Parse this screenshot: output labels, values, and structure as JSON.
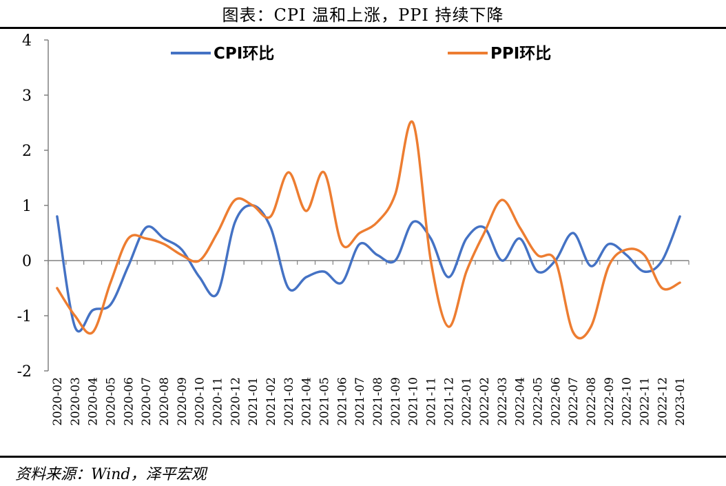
{
  "header": {
    "title": "图表：CPI 温和上涨，PPI 持续下降"
  },
  "footer": {
    "source": "资料来源：Wind，泽平宏观"
  },
  "chart_data": {
    "type": "line",
    "title": "图表：CPI 温和上涨，PPI 持续下降",
    "xlabel": "",
    "ylabel": "",
    "ylim": [
      -2,
      4
    ],
    "yticks": [
      -2,
      -1,
      0,
      1,
      2,
      3,
      4
    ],
    "legend_position": "top",
    "grid": false,
    "categories": [
      "2020-02",
      "2020-03",
      "2020-04",
      "2020-05",
      "2020-06",
      "2020-07",
      "2020-08",
      "2020-09",
      "2020-10",
      "2020-11",
      "2020-12",
      "2021-01",
      "2021-02",
      "2021-03",
      "2021-04",
      "2021-05",
      "2021-06",
      "2021-07",
      "2021-08",
      "2021-09",
      "2021-10",
      "2021-11",
      "2021-12",
      "2022-01",
      "2022-02",
      "2022-03",
      "2022-04",
      "2022-05",
      "2022-06",
      "2022-07",
      "2022-08",
      "2022-09",
      "2022-10",
      "2022-11",
      "2022-12",
      "2023-01"
    ],
    "series": [
      {
        "name": "CPI环比",
        "color": "#4472C4",
        "values": [
          0.8,
          -1.2,
          -0.9,
          -0.8,
          -0.1,
          0.6,
          0.4,
          0.2,
          -0.3,
          -0.6,
          0.7,
          1.0,
          0.6,
          -0.5,
          -0.3,
          -0.2,
          -0.4,
          0.3,
          0.1,
          0.0,
          0.7,
          0.4,
          -0.3,
          0.4,
          0.6,
          0.0,
          0.4,
          -0.2,
          0.0,
          0.5,
          -0.1,
          0.3,
          0.1,
          -0.2,
          0.0,
          0.8
        ]
      },
      {
        "name": "PPI环比",
        "color": "#ED7D31",
        "values": [
          -0.5,
          -1.0,
          -1.3,
          -0.4,
          0.4,
          0.4,
          0.3,
          0.1,
          0.0,
          0.5,
          1.1,
          1.0,
          0.8,
          1.6,
          0.9,
          1.6,
          0.3,
          0.5,
          0.7,
          1.2,
          2.5,
          0.0,
          -1.2,
          -0.2,
          0.5,
          1.1,
          0.6,
          0.1,
          0.0,
          -1.3,
          -1.2,
          -0.1,
          0.2,
          0.1,
          -0.5,
          -0.4
        ]
      }
    ]
  }
}
